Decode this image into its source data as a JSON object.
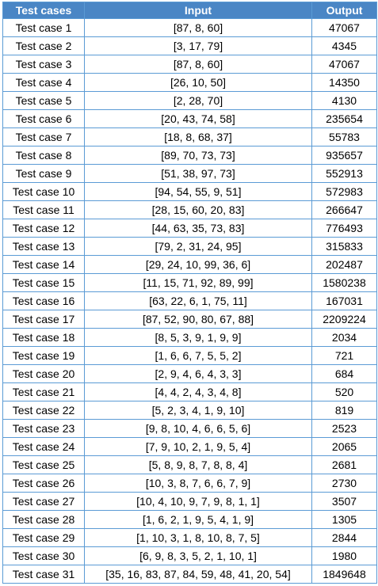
{
  "table": {
    "columns": [
      "Test cases",
      "Input",
      "Output"
    ],
    "rows": [
      [
        "Test case 1",
        "[87, 8, 60]",
        "47067"
      ],
      [
        "Test case 2",
        "[3, 17, 79]",
        "4345"
      ],
      [
        "Test case 3",
        "[87, 8, 60]",
        "47067"
      ],
      [
        "Test case 4",
        "[26, 10, 50]",
        "14350"
      ],
      [
        "Test case 5",
        "[2, 28, 70]",
        "4130"
      ],
      [
        "Test case 6",
        "[20, 43, 74, 58]",
        "235654"
      ],
      [
        "Test case 7",
        "[18, 8, 68, 37]",
        "55783"
      ],
      [
        "Test case 8",
        "[89, 70, 73, 73]",
        "935657"
      ],
      [
        "Test case 9",
        "[51, 38, 97, 73]",
        "552913"
      ],
      [
        "Test case 10",
        "[94, 54, 55, 9, 51]",
        "572983"
      ],
      [
        "Test case 11",
        "[28, 15, 60, 20, 83]",
        "266647"
      ],
      [
        "Test case 12",
        "[44, 63, 35, 73, 83]",
        "776493"
      ],
      [
        "Test case 13",
        "[79, 2, 31, 24, 95]",
        "315833"
      ],
      [
        "Test case 14",
        "[29, 24, 10, 99, 36, 6]",
        "202487"
      ],
      [
        "Test case 15",
        "[11, 15, 71, 92, 89, 99]",
        "1580238"
      ],
      [
        "Test case 16",
        "[63, 22, 6, 1, 75, 11]",
        "167031"
      ],
      [
        "Test case 17",
        "[87, 52, 90, 80, 67, 88]",
        "2209224"
      ],
      [
        "Test case 18",
        "[8, 5, 3, 9, 1, 9, 9]",
        "2034"
      ],
      [
        "Test case 19",
        "[1, 6, 6, 7, 5, 5, 2]",
        "721"
      ],
      [
        "Test case 20",
        "[2, 9, 4, 6, 4, 3, 3]",
        "684"
      ],
      [
        "Test case 21",
        "[4, 4, 2, 4, 3, 4, 8]",
        "520"
      ],
      [
        "Test case 22",
        "[5, 2, 3, 4, 1, 9, 10]",
        "819"
      ],
      [
        "Test case 23",
        "[9, 8, 10, 4, 6, 6, 5, 6]",
        "2523"
      ],
      [
        "Test case 24",
        "[7, 9, 10, 2, 1, 9, 5, 4]",
        "2065"
      ],
      [
        "Test case 25",
        "[5, 8, 9, 8, 7, 8, 8, 4]",
        "2681"
      ],
      [
        "Test case 26",
        "[10, 3, 8, 7, 6, 6, 7, 9]",
        "2730"
      ],
      [
        "Test case 27",
        "[10, 4, 10, 9, 7, 9, 8, 1, 1]",
        "3507"
      ],
      [
        "Test case 28",
        "[1, 6, 2, 1, 9, 5, 4, 1, 9]",
        "1305"
      ],
      [
        "Test case 29",
        "[1, 10, 3, 1, 8, 10, 8, 7, 5]",
        "2844"
      ],
      [
        "Test case 30",
        "[6, 9, 8, 3, 5, 2, 1, 10, 1]",
        "1980"
      ],
      [
        "Test case 31",
        "[35, 16, 83, 87, 84, 59, 48, 41, 20, 54]",
        "1849648"
      ]
    ]
  }
}
